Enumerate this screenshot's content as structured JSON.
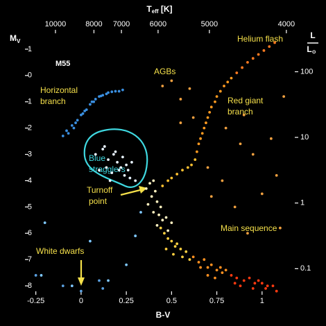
{
  "chart_data": {
    "type": "scatter",
    "xlabel": "B-V",
    "ylabel": {
      "main": "M",
      "sub": "V"
    },
    "x2label": {
      "main": "T",
      "sub": "eff",
      "unit": "[K]"
    },
    "y2label": {
      "numerator": "L",
      "denominator": "L",
      "denominator_sub": "⊙"
    },
    "xlim": [
      -0.31,
      1.2
    ],
    "xticks": [
      -0.25,
      0,
      0.25,
      0.5,
      0.75,
      1
    ],
    "ylim": [
      8.34,
      -1.42
    ],
    "yticks": [
      -1,
      0,
      1,
      2,
      3,
      4,
      5,
      6,
      7,
      8
    ],
    "x2lim": [
      12470,
      3880
    ],
    "x2scale": "reciprocal",
    "x2ticks": [
      10000,
      8000,
      7000,
      6000,
      5000,
      4000
    ],
    "y2lim": [
      0.04,
      325
    ],
    "y2scale": "log",
    "y2ticks": [
      0.1,
      1,
      10,
      100
    ],
    "annotations": {
      "cluster": "M55",
      "helium_flash": "Helium flash",
      "agbs": "AGBs",
      "horizontal_branch": [
        "Horizontal",
        "branch"
      ],
      "red_giant_branch": [
        "Red giant",
        "branch"
      ],
      "blue_stragglers": [
        "Blue",
        "stragglers"
      ],
      "turnoff_point": [
        "Turnoff",
        "point"
      ],
      "main_sequence": "Main sequence",
      "white_dwarfs": "White dwarfs"
    },
    "series": [
      {
        "color": "#3a8fe0",
        "x": [
          -0.1,
          -0.08,
          -0.07,
          -0.05,
          -0.04,
          -0.03,
          -0.02,
          0,
          0.01,
          0.02,
          0.03,
          0.05,
          0.06,
          0.07,
          0.08,
          0.1,
          0.11,
          0.12,
          0.14,
          0.15,
          0.17,
          0.19,
          0.21,
          0.23
        ],
        "values": [
          2.3,
          2.1,
          2.2,
          1.9,
          2.0,
          1.8,
          1.7,
          1.5,
          1.45,
          1.35,
          1.3,
          1.1,
          1.0,
          1.0,
          0.9,
          0.8,
          0.78,
          0.75,
          0.7,
          0.65,
          0.62,
          0.6,
          0.6,
          0.55
        ]
      },
      {
        "color": "#e8f4ff",
        "x": [
          0.08,
          0.12,
          0.15,
          0.18,
          0.2,
          0.22,
          0.25,
          0.1,
          0.14,
          0.17,
          0.21,
          0.24,
          0.27,
          0.19,
          0.23,
          0.16,
          0.26,
          0.3,
          0.13,
          0.28
        ],
        "values": [
          3.0,
          2.8,
          3.2,
          3.0,
          3.3,
          3.5,
          3.4,
          3.6,
          3.5,
          3.7,
          3.6,
          3.8,
          3.9,
          2.9,
          3.1,
          4.0,
          3.6,
          4.0,
          2.7,
          3.3
        ]
      },
      {
        "color": "#fff2c0",
        "x": [
          0.36,
          0.38,
          0.4,
          0.39,
          0.41,
          0.42,
          0.44,
          0.37,
          0.4,
          0.43,
          0.45,
          0.42,
          0.47,
          0.5,
          0.48
        ],
        "values": [
          4.3,
          4.1,
          4.0,
          4.6,
          4.4,
          4.8,
          5.0,
          4.9,
          5.2,
          5.3,
          5.5,
          5.7,
          5.4,
          5.6,
          5.9
        ]
      },
      {
        "color": "#ffc030",
        "x": [
          0.45,
          0.48,
          0.5,
          0.53,
          0.56,
          0.59,
          0.61,
          0.63
        ],
        "values": [
          4.2,
          4.0,
          3.9,
          3.75,
          3.6,
          3.5,
          3.4,
          3.2
        ]
      },
      {
        "color": "#ff9a20",
        "x": [
          0.64,
          0.65,
          0.66,
          0.67,
          0.68,
          0.69,
          0.7,
          0.71,
          0.72,
          0.74,
          0.75,
          0.77,
          0.79,
          0.81,
          0.83
        ],
        "values": [
          2.9,
          2.6,
          2.4,
          2.2,
          2.0,
          1.8,
          1.6,
          1.4,
          1.2,
          1.0,
          0.8,
          0.6,
          0.4,
          0.25,
          0.1
        ]
      },
      {
        "color": "#ff7a20",
        "x": [
          0.86,
          0.89,
          0.92,
          0.95,
          0.98,
          1.01,
          1.04,
          1.07
        ],
        "values": [
          -0.1,
          -0.3,
          -0.5,
          -0.65,
          -0.8,
          -0.95,
          -1.1,
          -1.25
        ]
      },
      {
        "color": "#ffd040",
        "x": [
          0.44,
          0.46,
          0.48,
          0.5,
          0.52,
          0.55,
          0.47,
          0.51,
          0.53,
          0.58,
          0.56,
          0.6
        ],
        "values": [
          5.8,
          6.0,
          6.2,
          6.3,
          6.5,
          6.6,
          6.6,
          6.8,
          6.4,
          6.7,
          6.9,
          7.0
        ]
      },
      {
        "color": "#ff9020",
        "x": [
          0.62,
          0.65,
          0.68,
          0.7,
          0.72,
          0.75,
          0.78,
          0.8,
          0.66,
          0.7,
          0.74,
          0.77
        ],
        "values": [
          6.9,
          7.1,
          7.0,
          7.3,
          7.2,
          7.4,
          7.5,
          7.4,
          7.3,
          7.6,
          7.7,
          7.3
        ]
      },
      {
        "color": "#ff3a10",
        "x": [
          0.83,
          0.86,
          0.9,
          0.93,
          0.96,
          1.0,
          1.03,
          1.06,
          0.88,
          0.95,
          0.98,
          1.02,
          0.85,
          1.08
        ],
        "values": [
          7.6,
          7.7,
          7.8,
          7.7,
          7.9,
          7.9,
          8.0,
          8.0,
          8.0,
          8.1,
          7.8,
          8.1,
          7.9,
          8.2
        ]
      },
      {
        "color": "#f0a040",
        "x": [
          0.45,
          0.5,
          0.55,
          0.6,
          0.62,
          0.7,
          0.72,
          0.8,
          0.9,
          0.95,
          1.0,
          1.05,
          1.1,
          0.85,
          0.92,
          1.08,
          0.55,
          0.78,
          0.88,
          1.12
        ],
        "values": [
          0.4,
          0.2,
          0.9,
          0.5,
          1.6,
          3.5,
          4.6,
          2.0,
          1.5,
          3.0,
          4.5,
          2.4,
          5.8,
          5.0,
          6.0,
          3.8,
          1.8,
          4.0,
          2.6,
          0.8
        ]
      },
      {
        "color": "#7fc8ff",
        "x": [
          -0.2,
          -0.22,
          0.05,
          0.25,
          0.3,
          0.33,
          0.15,
          -0.05
        ],
        "values": [
          5.6,
          7.6,
          6.3,
          7.2,
          6.1,
          5.2,
          7.8,
          8.0
        ]
      },
      {
        "color": "#5aa0e0",
        "x": [
          -0.25,
          0.1,
          0.12,
          -0.1,
          0.0
        ],
        "values": [
          7.6,
          7.8,
          8.1,
          8.0,
          8.2
        ]
      }
    ]
  }
}
